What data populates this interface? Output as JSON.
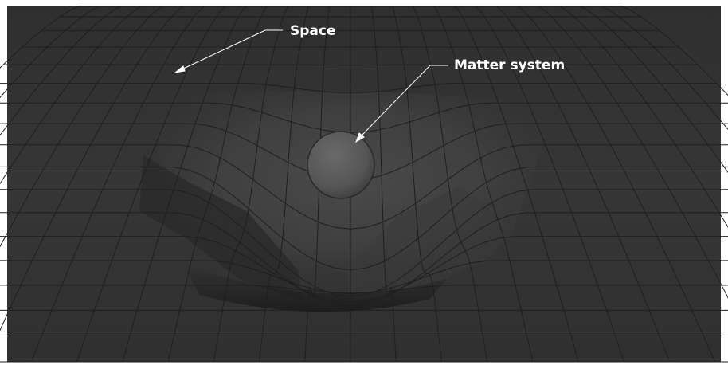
{
  "labels": {
    "space": "Space",
    "matter_system": "Matter system"
  },
  "colors": {
    "surface_light": "#444444",
    "surface_dark": "#2e2e2e",
    "grid_line": "#1f1f1f",
    "sphere": "#565656",
    "annotation": "#ffffff"
  },
  "icons": {
    "sphere": "matter-sphere-icon"
  }
}
